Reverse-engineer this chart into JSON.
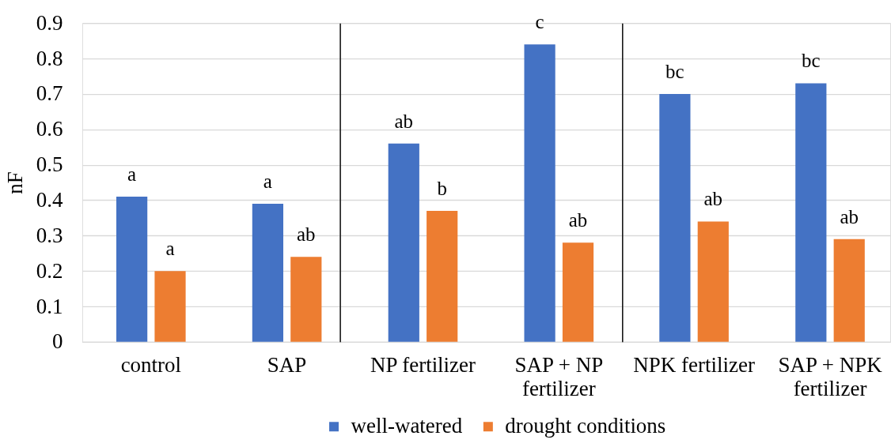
{
  "chart_data": [
    {
      "type": "bar",
      "ylabel": "nF",
      "categories": [
        "control",
        "SAP"
      ],
      "series": [
        {
          "color": "#4472c4",
          "values": [
            0.41,
            0.39
          ],
          "value_labels": [
            "a",
            "a"
          ]
        },
        {
          "color": "#ed7d31",
          "values": [
            0.2,
            0.24
          ],
          "value_labels": [
            "a",
            "ab"
          ]
        }
      ],
      "ylim": [
        0,
        0.9
      ],
      "yticks": [
        0,
        0.1,
        0.2,
        0.3,
        0.4,
        0.5,
        0.6,
        0.7,
        0.8,
        0.9
      ],
      "grid": "y"
    },
    {
      "type": "bar",
      "categories": [
        "NP fertilizer",
        "SAP + NP fertilizer"
      ],
      "series": [
        {
          "name": "well-watered",
          "color": "#4472c4",
          "values": [
            0.56,
            0.84
          ],
          "value_labels": [
            "ab",
            "c"
          ]
        },
        {
          "name": "drought conditions",
          "color": "#ed7d31",
          "values": [
            0.37,
            0.28
          ],
          "value_labels": [
            "b",
            "ab"
          ]
        }
      ],
      "ylim": [
        0,
        0.9
      ],
      "yticks": [
        0,
        0.1,
        0.2,
        0.3,
        0.4,
        0.5,
        0.6,
        0.7,
        0.8,
        0.9
      ],
      "grid": "y",
      "tick_labels": "x",
      "legend": "bottom"
    },
    {
      "type": "bar",
      "categories": [
        "NPK fertilizer",
        "SAP + NPK fertilizer"
      ],
      "series": [
        {
          "color": "#4472c4",
          "values": [
            0.7,
            0.73
          ],
          "value_labels": [
            "bc",
            "bc"
          ]
        },
        {
          "color": "#ed7d31",
          "values": [
            0.34,
            0.29
          ],
          "value_labels": [
            "ab",
            "ab"
          ]
        }
      ],
      "ylim": [
        0,
        0.9
      ],
      "yticks": [
        0,
        0.1,
        0.2,
        0.3,
        0.4,
        0.5,
        0.6,
        0.7,
        0.8,
        0.9
      ],
      "grid": "y",
      "tick_labels": "x"
    }
  ]
}
